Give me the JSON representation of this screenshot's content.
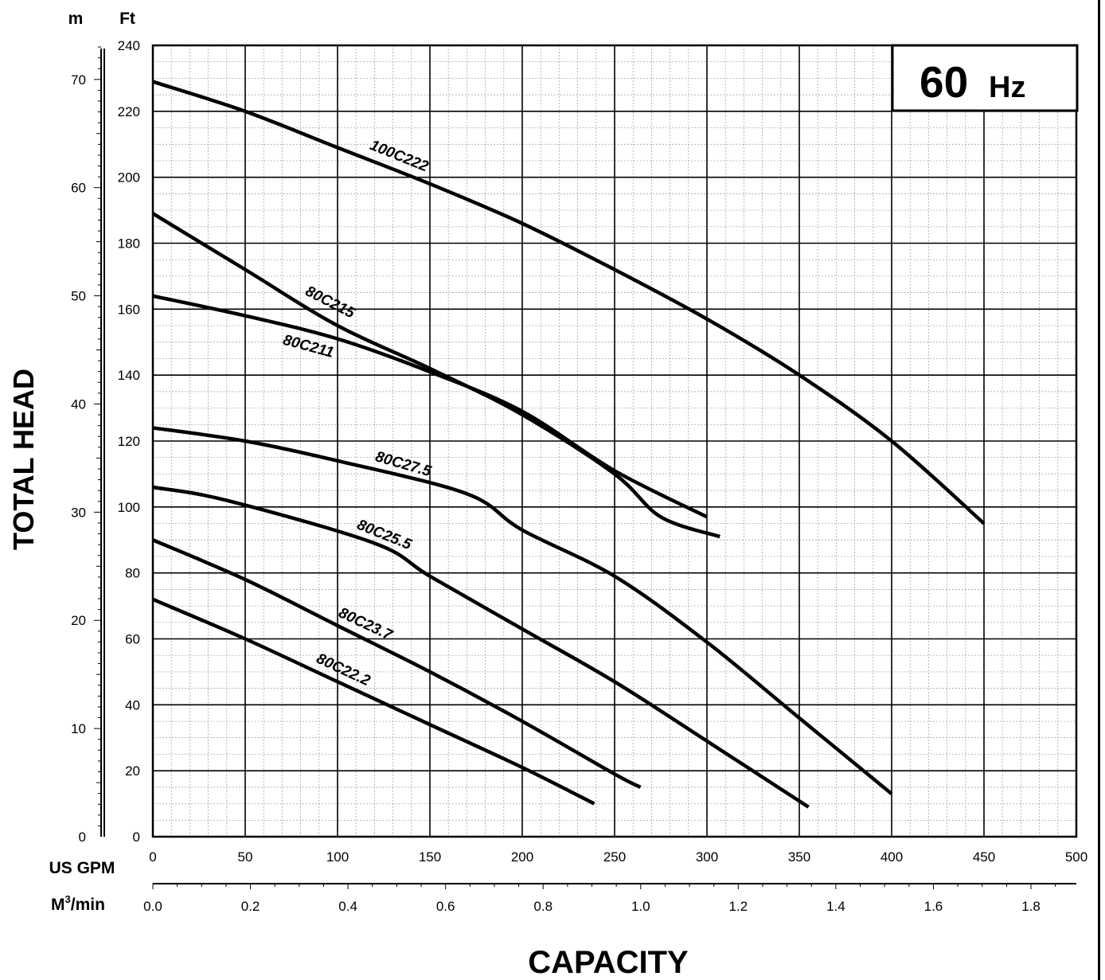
{
  "chart_data": {
    "type": "line",
    "badge": {
      "value": "60",
      "unit": "Hz"
    },
    "xlabel": "CAPACITY",
    "ylabel": "TOTAL HEAD",
    "x_axis": {
      "unit": "US GPM",
      "range": [
        0,
        500
      ],
      "ticks": [
        "0",
        "50",
        "100",
        "150",
        "200",
        "250",
        "300",
        "350",
        "400",
        "450",
        "500"
      ]
    },
    "x2_axis": {
      "unit_main": "M",
      "unit_sup": "3",
      "unit_tail": "/min",
      "range": [
        0,
        1.893
      ],
      "ticks": [
        "0.0",
        "0.2",
        "0.4",
        "0.6",
        "0.8",
        "1.0",
        "1.2",
        "1.4",
        "1.6",
        "1.8"
      ]
    },
    "y_axis": {
      "unit": "Ft",
      "range": [
        0,
        240
      ],
      "ticks": [
        "0",
        "20",
        "40",
        "60",
        "80",
        "100",
        "120",
        "140",
        "160",
        "180",
        "200",
        "220",
        "240"
      ]
    },
    "y2_axis": {
      "unit": "m",
      "range": [
        0,
        73.15
      ],
      "ticks": [
        "0",
        "10",
        "20",
        "30",
        "40",
        "50",
        "60",
        "70"
      ]
    },
    "grid": true,
    "series": [
      {
        "name": "100C222",
        "x": [
          0,
          50,
          100,
          150,
          200,
          250,
          300,
          350,
          400,
          450
        ],
        "y": [
          229,
          220,
          209,
          198,
          186,
          172,
          157,
          140,
          120,
          95
        ]
      },
      {
        "name": "80C215",
        "x": [
          0,
          50,
          100,
          150,
          200,
          250,
          275,
          307
        ],
        "y": [
          189,
          172,
          155,
          142,
          128,
          110,
          97,
          91
        ]
      },
      {
        "name": "80C211",
        "x": [
          0,
          50,
          100,
          150,
          200,
          250,
          300
        ],
        "y": [
          164,
          158,
          151,
          141,
          129,
          111,
          97
        ]
      },
      {
        "name": "80C27.5",
        "x": [
          0,
          50,
          100,
          170,
          200,
          250,
          300,
          350,
          400
        ],
        "y": [
          124,
          120,
          114,
          104,
          93,
          79,
          59,
          36,
          13
        ]
      },
      {
        "name": "80C25.5",
        "x": [
          0,
          40,
          120,
          150,
          200,
          250,
          300,
          355
        ],
        "y": [
          106,
          102,
          89,
          79,
          63,
          47,
          29,
          9
        ]
      },
      {
        "name": "80C23.7",
        "x": [
          0,
          50,
          100,
          150,
          200,
          250,
          264
        ],
        "y": [
          90,
          78,
          64,
          50,
          35,
          19,
          15
        ]
      },
      {
        "name": "80C22.2",
        "x": [
          0,
          50,
          100,
          150,
          200,
          239
        ],
        "y": [
          72,
          60,
          47,
          34,
          21,
          10
        ]
      }
    ]
  }
}
